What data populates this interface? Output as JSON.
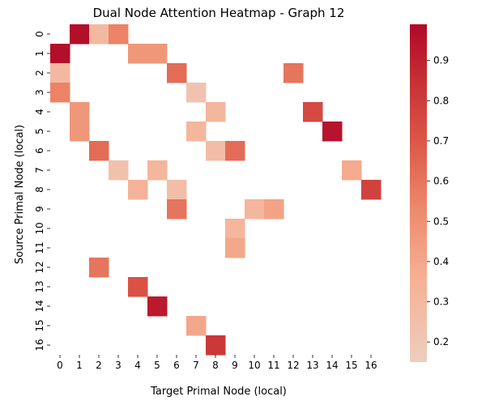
{
  "chart_data": {
    "type": "heatmap",
    "title": "Dual Node Attention Heatmap - Graph 12",
    "xlabel": "Target Primal Node (local)",
    "ylabel": "Source Primal Node (local)",
    "x_categories": [
      "0",
      "1",
      "2",
      "3",
      "4",
      "5",
      "6",
      "7",
      "8",
      "9",
      "10",
      "11",
      "12",
      "13",
      "14",
      "15",
      "16"
    ],
    "y_categories": [
      "0",
      "1",
      "2",
      "3",
      "4",
      "5",
      "6",
      "7",
      "8",
      "9",
      "10",
      "11",
      "12",
      "13",
      "14",
      "15",
      "16"
    ],
    "colormap": "coolwarm-like",
    "colorbar": {
      "vmin": 0.15,
      "vmax": 0.99,
      "ticks": [
        0.2,
        0.3,
        0.4,
        0.5,
        0.6,
        0.7,
        0.8,
        0.9
      ],
      "tick_labels": [
        "0.2",
        "0.3",
        "0.4",
        "0.5",
        "0.6",
        "0.7",
        "0.8",
        "0.9"
      ]
    },
    "cells": [
      {
        "row": 0,
        "col": 1,
        "value": 0.97
      },
      {
        "row": 0,
        "col": 2,
        "value": 0.3
      },
      {
        "row": 0,
        "col": 3,
        "value": 0.55
      },
      {
        "row": 1,
        "col": 0,
        "value": 0.97
      },
      {
        "row": 1,
        "col": 4,
        "value": 0.47
      },
      {
        "row": 1,
        "col": 5,
        "value": 0.47
      },
      {
        "row": 2,
        "col": 0,
        "value": 0.3
      },
      {
        "row": 2,
        "col": 6,
        "value": 0.63
      },
      {
        "row": 2,
        "col": 12,
        "value": 0.6
      },
      {
        "row": 3,
        "col": 0,
        "value": 0.55
      },
      {
        "row": 3,
        "col": 7,
        "value": 0.22
      },
      {
        "row": 4,
        "col": 1,
        "value": 0.47
      },
      {
        "row": 4,
        "col": 8,
        "value": 0.32
      },
      {
        "row": 4,
        "col": 13,
        "value": 0.75
      },
      {
        "row": 5,
        "col": 1,
        "value": 0.47
      },
      {
        "row": 5,
        "col": 7,
        "value": 0.32
      },
      {
        "row": 5,
        "col": 14,
        "value": 0.95
      },
      {
        "row": 6,
        "col": 2,
        "value": 0.63
      },
      {
        "row": 6,
        "col": 8,
        "value": 0.27
      },
      {
        "row": 6,
        "col": 9,
        "value": 0.63
      },
      {
        "row": 7,
        "col": 3,
        "value": 0.24
      },
      {
        "row": 7,
        "col": 5,
        "value": 0.32
      },
      {
        "row": 7,
        "col": 15,
        "value": 0.38
      },
      {
        "row": 8,
        "col": 4,
        "value": 0.34
      },
      {
        "row": 8,
        "col": 6,
        "value": 0.26
      },
      {
        "row": 8,
        "col": 16,
        "value": 0.78
      },
      {
        "row": 9,
        "col": 6,
        "value": 0.6
      },
      {
        "row": 9,
        "col": 10,
        "value": 0.32
      },
      {
        "row": 9,
        "col": 11,
        "value": 0.42
      },
      {
        "row": 10,
        "col": 9,
        "value": 0.32
      },
      {
        "row": 11,
        "col": 9,
        "value": 0.4
      },
      {
        "row": 12,
        "col": 2,
        "value": 0.6
      },
      {
        "row": 13,
        "col": 4,
        "value": 0.72
      },
      {
        "row": 14,
        "col": 5,
        "value": 0.93
      },
      {
        "row": 15,
        "col": 7,
        "value": 0.4
      },
      {
        "row": 16,
        "col": 8,
        "value": 0.82
      }
    ]
  }
}
